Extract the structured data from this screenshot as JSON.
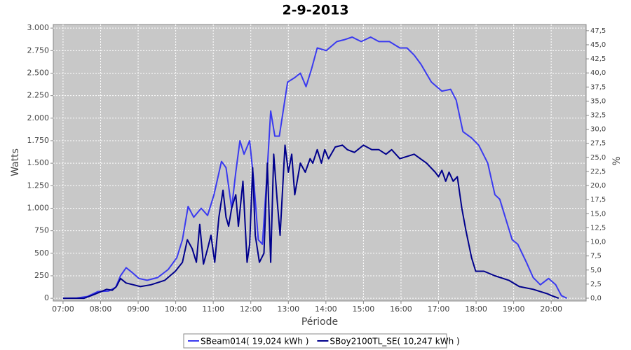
{
  "chart_data": {
    "type": "line",
    "title": "2-9-2013",
    "x_label": "Période",
    "y_label": "Watts",
    "y2_label": "%",
    "grid": true,
    "legend": "bottom",
    "xlim": [
      6.74,
      20.93
    ],
    "xticks": [
      {
        "value": 7,
        "label": "07:00"
      },
      {
        "value": 8,
        "label": "08:00"
      },
      {
        "value": 9,
        "label": "09:00"
      },
      {
        "value": 10,
        "label": "10:00"
      },
      {
        "value": 11,
        "label": "11:00"
      },
      {
        "value": 12,
        "label": "12:00"
      },
      {
        "value": 13,
        "label": "13:00"
      },
      {
        "value": 14,
        "label": "14:00"
      },
      {
        "value": 15,
        "label": "15:00"
      },
      {
        "value": 16,
        "label": "16:00"
      },
      {
        "value": 17,
        "label": "17:00"
      },
      {
        "value": 18,
        "label": "18:00"
      },
      {
        "value": 19,
        "label": "19:00"
      },
      {
        "value": 20,
        "label": "20:00"
      }
    ],
    "ylim": [
      -30,
      3040
    ],
    "yticks": [
      0,
      250,
      500,
      750,
      {
        "value": 1000,
        "label": "1.000"
      },
      {
        "value": 1250,
        "label": "1.250"
      },
      {
        "value": 1500,
        "label": "1.500"
      },
      {
        "value": 1750,
        "label": "1.750"
      },
      {
        "value": 2000,
        "label": "2.000"
      },
      {
        "value": 2250,
        "label": "2.250"
      },
      {
        "value": 2500,
        "label": "2.500"
      },
      {
        "value": 2750,
        "label": "2.750"
      },
      {
        "value": 3000,
        "label": "3.000"
      }
    ],
    "y2lim": [
      -0.5,
      48.6
    ],
    "y2ticks": [
      {
        "value": 0,
        "label": "0,0"
      },
      {
        "value": 2.5,
        "label": "2,5"
      },
      {
        "value": 5,
        "label": "5,0"
      },
      {
        "value": 7.5,
        "label": "7,5"
      },
      {
        "value": 10,
        "label": "10,0"
      },
      {
        "value": 12.5,
        "label": "12,5"
      },
      {
        "value": 15,
        "label": "15,0"
      },
      {
        "value": 17.5,
        "label": "17,5"
      },
      {
        "value": 20,
        "label": "20,0"
      },
      {
        "value": 22.5,
        "label": "22,5"
      },
      {
        "value": 25,
        "label": "25,0"
      },
      {
        "value": 27.5,
        "label": "27,5"
      },
      {
        "value": 30,
        "label": "30,0"
      },
      {
        "value": 32.5,
        "label": "32,5"
      },
      {
        "value": 35,
        "label": "35,0"
      },
      {
        "value": 37.5,
        "label": "37,5"
      },
      {
        "value": 40,
        "label": "40,0"
      },
      {
        "value": 42.5,
        "label": "42,5"
      },
      {
        "value": 45,
        "label": "45,0"
      },
      {
        "value": 47.5,
        "label": "47,5"
      }
    ],
    "series": [
      {
        "name": "SBeam014( 19,024 kWh )",
        "color": "#3a3af0",
        "x": [
          7.0,
          7.37,
          7.65,
          7.93,
          8.21,
          8.4,
          8.53,
          8.68,
          8.83,
          9.02,
          9.24,
          9.52,
          9.8,
          10.03,
          10.18,
          10.33,
          10.48,
          10.68,
          10.85,
          11.02,
          11.22,
          11.34,
          11.49,
          11.6,
          11.71,
          11.82,
          11.97,
          12.08,
          12.2,
          12.31,
          12.42,
          12.53,
          12.64,
          12.76,
          12.87,
          12.98,
          13.17,
          13.32,
          13.47,
          13.62,
          13.77,
          14.01,
          14.29,
          14.48,
          14.7,
          14.94,
          15.19,
          15.41,
          15.69,
          15.97,
          16.16,
          16.35,
          16.53,
          16.81,
          17.09,
          17.32,
          17.47,
          17.65,
          17.88,
          18.07,
          18.31,
          18.5,
          18.63,
          18.74,
          18.96,
          19.11,
          19.34,
          19.52,
          19.71,
          19.93,
          20.12,
          20.27,
          20.42
        ],
        "values": [
          0,
          3,
          20,
          75,
          80,
          120,
          250,
          340,
          290,
          220,
          200,
          230,
          320,
          450,
          650,
          1020,
          900,
          1000,
          920,
          1150,
          1520,
          1450,
          1000,
          1400,
          1750,
          1600,
          1750,
          1300,
          650,
          600,
          1300,
          2080,
          1800,
          1800,
          2100,
          2400,
          2450,
          2500,
          2350,
          2550,
          2780,
          2750,
          2850,
          2870,
          2900,
          2850,
          2900,
          2850,
          2850,
          2780,
          2780,
          2700,
          2600,
          2400,
          2300,
          2320,
          2200,
          1850,
          1780,
          1700,
          1500,
          1150,
          1100,
          950,
          650,
          600,
          400,
          230,
          150,
          220,
          150,
          30,
          0
        ]
      },
      {
        "name": "SBoy2100TL_SE( 10,247 kWh )",
        "color": "#00008c",
        "x": [
          7.0,
          7.56,
          7.75,
          7.93,
          8.16,
          8.31,
          8.42,
          8.53,
          8.68,
          8.87,
          9.06,
          9.34,
          9.71,
          9.99,
          10.18,
          10.31,
          10.44,
          10.55,
          10.64,
          10.74,
          10.85,
          10.94,
          11.04,
          11.15,
          11.26,
          11.34,
          11.41,
          11.49,
          11.6,
          11.67,
          11.79,
          11.9,
          11.97,
          12.05,
          12.12,
          12.23,
          12.35,
          12.44,
          12.53,
          12.61,
          12.7,
          12.78,
          12.91,
          13.0,
          13.09,
          13.17,
          13.32,
          13.45,
          13.58,
          13.65,
          13.77,
          13.88,
          13.97,
          14.07,
          14.25,
          14.44,
          14.57,
          14.76,
          15.0,
          15.22,
          15.41,
          15.6,
          15.75,
          15.97,
          16.35,
          16.68,
          16.91,
          17.0,
          17.09,
          17.19,
          17.28,
          17.39,
          17.5,
          17.62,
          17.73,
          17.88,
          17.99,
          18.21,
          18.5,
          18.87,
          19.15,
          19.52,
          19.9,
          20.01,
          20.2
        ],
        "values": [
          0,
          0,
          30,
          60,
          100,
          90,
          130,
          220,
          170,
          150,
          130,
          150,
          200,
          300,
          400,
          650,
          550,
          400,
          820,
          380,
          550,
          700,
          400,
          900,
          1200,
          900,
          800,
          1000,
          1150,
          800,
          1300,
          400,
          600,
          1450,
          700,
          400,
          500,
          1500,
          400,
          1600,
          1100,
          700,
          1700,
          1400,
          1600,
          1150,
          1500,
          1400,
          1550,
          1500,
          1650,
          1500,
          1650,
          1550,
          1680,
          1700,
          1650,
          1620,
          1700,
          1650,
          1650,
          1600,
          1650,
          1550,
          1600,
          1500,
          1400,
          1350,
          1420,
          1300,
          1400,
          1300,
          1350,
          1000,
          750,
          450,
          300,
          300,
          250,
          200,
          130,
          100,
          50,
          30,
          0
        ]
      }
    ]
  }
}
